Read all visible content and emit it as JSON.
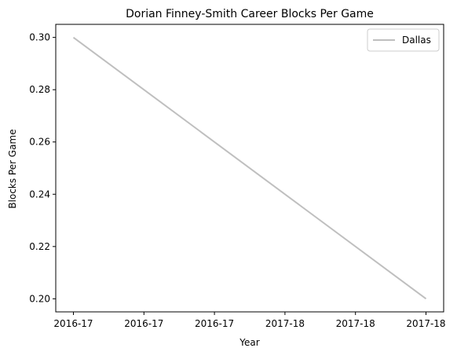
{
  "chart_data": {
    "type": "line",
    "title": "Dorian Finney-Smith Career Blocks Per Game",
    "xlabel": "Year",
    "ylabel": "Blocks Per Game",
    "x_tick_labels": [
      "2016-17",
      "2016-17",
      "2016-17",
      "2017-18",
      "2017-18",
      "2017-18"
    ],
    "x": [
      "2016-17",
      "2017-18"
    ],
    "series": [
      {
        "name": "Dallas",
        "color": "#bfbfbf",
        "values": [
          0.3,
          0.2
        ]
      }
    ],
    "yticks": [
      0.2,
      0.22,
      0.24,
      0.26,
      0.28,
      0.3
    ],
    "ylim": [
      0.195,
      0.305
    ],
    "grid": false,
    "legend_position": "top-right"
  }
}
